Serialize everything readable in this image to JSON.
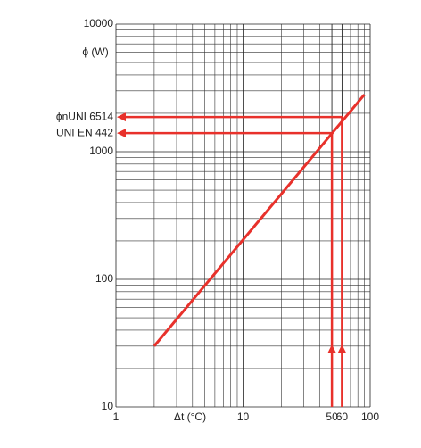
{
  "chart_data": {
    "type": "line",
    "x_log": true,
    "y_log": true,
    "grid": true,
    "xlabel": "Δt (°C)",
    "ylabel": "ϕ (W)",
    "xlim": [
      1,
      100
    ],
    "ylim": [
      10,
      10000
    ],
    "xticks": [
      1,
      10,
      50,
      60,
      100
    ],
    "yticks": [
      10,
      100,
      1000,
      10000
    ],
    "x": [
      2,
      90
    ],
    "series": [
      {
        "color": "#e8312b",
        "values": [
          30,
          2800
        ]
      }
    ],
    "annotations": [
      {
        "text": "ϕnUNI 6514",
        "x": 60,
        "y": 1870,
        "color": "#e8312b"
      },
      {
        "text": "UNI EN 442",
        "x": 50,
        "y": 1400,
        "color": "#e8312b"
      }
    ]
  }
}
